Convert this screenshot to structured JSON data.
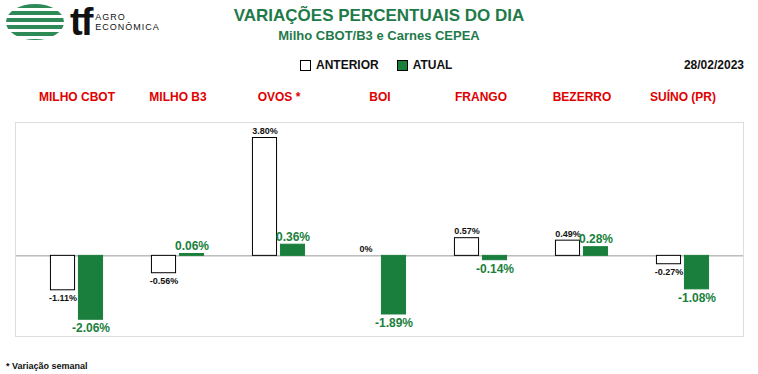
{
  "chart_data": {
    "type": "bar",
    "title": "VARIAÇÕES PERCENTUAIS DO DIA",
    "subtitle": "Milho CBOT/B3 e Carnes CEPEA",
    "date": "28/02/2023",
    "logo": "tf",
    "logo_text": "AGRO ECONÔMICA",
    "note": "* Variação semanal",
    "categories": [
      "MILHO CBOT",
      "MILHO B3",
      "OVOS *",
      "BOI",
      "FRANGO",
      "BEZERRO",
      "SUÍNO (PR)"
    ],
    "series": [
      {
        "name": "ANTERIOR",
        "color": "#ffffff",
        "values": [
          -1.11,
          -0.56,
          3.8,
          0,
          0.57,
          0.49,
          -0.27
        ],
        "value_labels": [
          "-1.11%",
          "-0.56%",
          "3.80%",
          "0%",
          "0.57%",
          "0.49%",
          "-0.27%"
        ]
      },
      {
        "name": "ATUAL",
        "color": "#1a7f3c",
        "values": [
          -2.06,
          0.06,
          0.36,
          -1.89,
          -0.14,
          0.28,
          -1.08
        ],
        "value_labels": [
          "-2.06%",
          "0.06%",
          "0.36%",
          "-1.89%",
          "-0.14%",
          "0.28%",
          "-1.08%"
        ]
      }
    ],
    "ylim": [
      -2.6,
      4.3
    ],
    "yticks": [],
    "tick_labels": "x",
    "data_labels": true,
    "legend": "top"
  }
}
